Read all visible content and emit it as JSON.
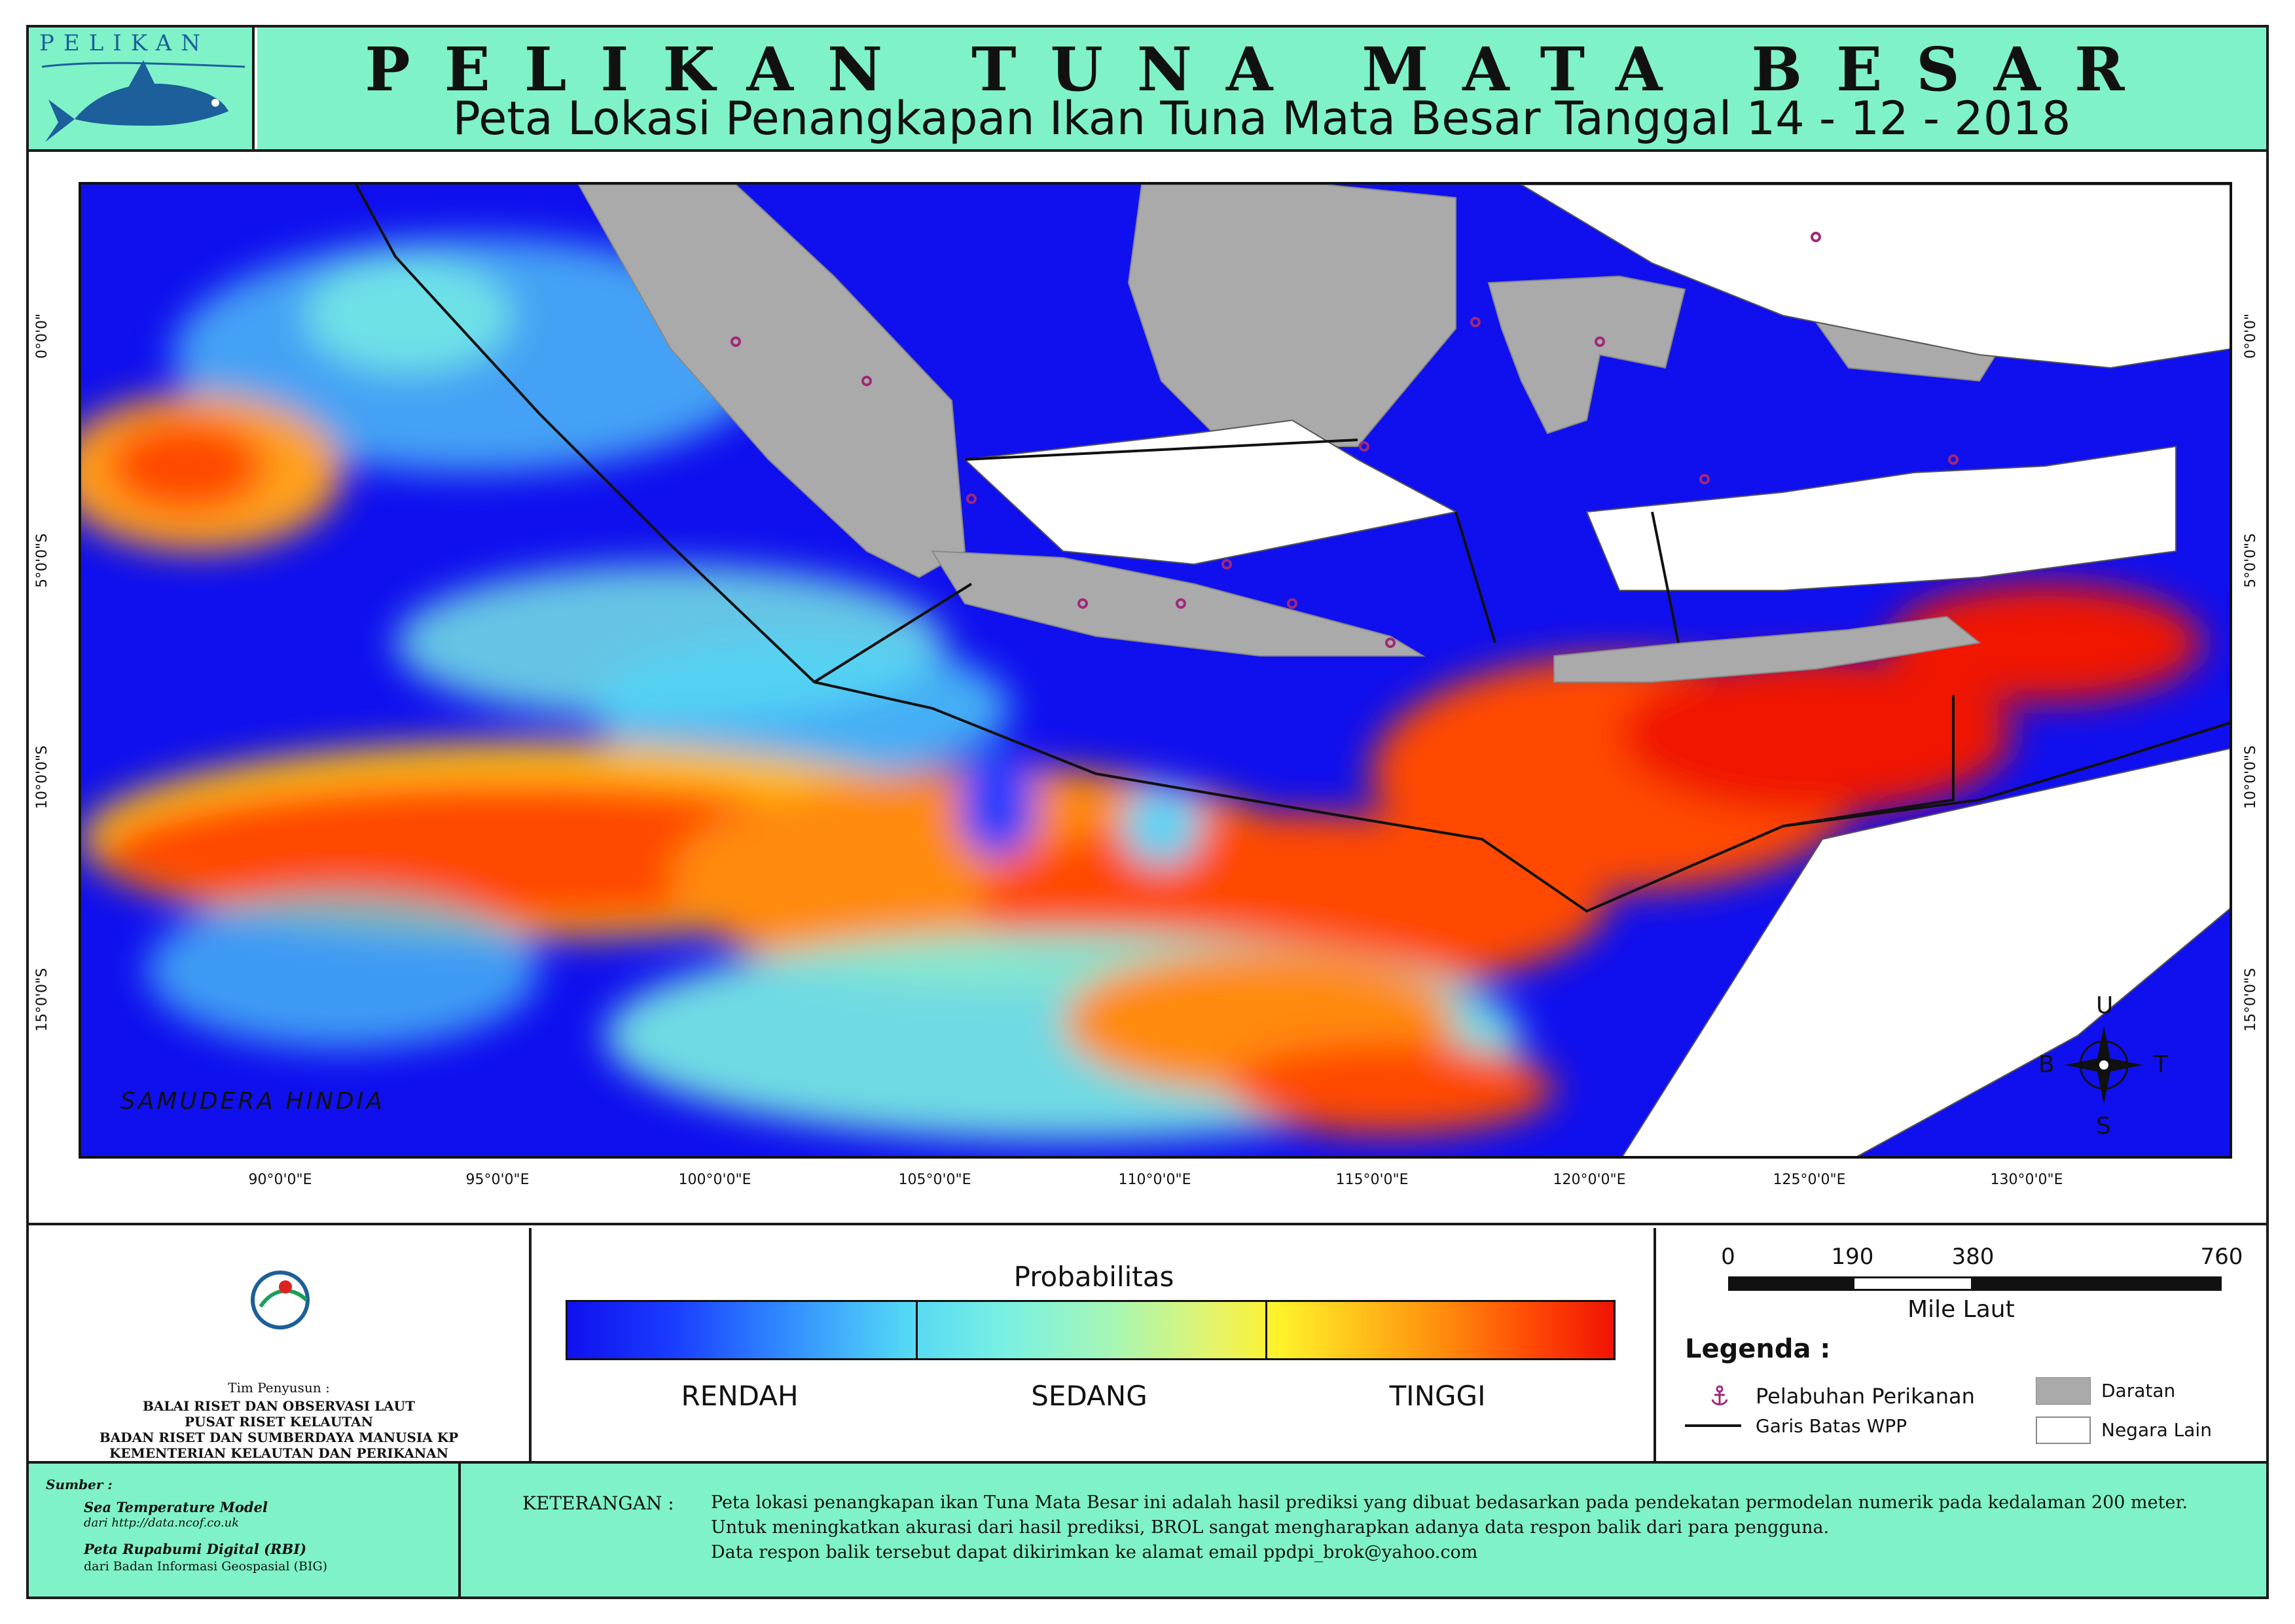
{
  "header": {
    "logo_text": "PELIKAN",
    "title": "PELIKAN TUNA MATA BESAR",
    "subtitle": "Peta Lokasi Penangkapan Ikan Tuna Mata Besar Tanggal 14 - 12 - 2018"
  },
  "map": {
    "ocean_label": "SAMUDERA HINDIA",
    "lon_labels": [
      "90°0'0\"E",
      "95°0'0\"E",
      "100°0'0\"E",
      "105°0'0\"E",
      "110°0'0\"E",
      "115°0'0\"E",
      "120°0'0\"E",
      "125°0'0\"E",
      "130°0'0\"E"
    ],
    "lat_labels": [
      "0°0'0\"",
      "5°0'0\"S",
      "10°0'0\"S",
      "15°0'0\"S"
    ],
    "compass": {
      "north": "U",
      "south": "S",
      "west": "B",
      "east": "T"
    },
    "colors": {
      "low": "#1010ee",
      "mid": "#7af1e2",
      "high": "#f01304",
      "land": "#aaaaaa",
      "other_country": "#ffffff",
      "port": "#a1287a"
    }
  },
  "team": {
    "title": "Tim Penyusun :",
    "lines": [
      "BALAI RISET DAN OBSERVASI LAUT",
      "PUSAT RISET KELAUTAN",
      "BADAN RISET DAN SUMBERDAYA MANUSIA KP",
      "KEMENTERIAN KELAUTAN DAN PERIKANAN"
    ]
  },
  "probability": {
    "title": "Probabilitas",
    "labels": [
      "RENDAH",
      "SEDANG",
      "TINGGI"
    ]
  },
  "scale": {
    "ticks": [
      "0",
      "190",
      "380",
      "760"
    ],
    "unit": "Mile Laut"
  },
  "legend": {
    "title": "Legenda :",
    "port": "Pelabuhan Perikanan",
    "boundary": "Garis Batas WPP",
    "land": "Daratan",
    "other_country": "Negara Lain"
  },
  "sources": {
    "title": "Sumber :",
    "item1_title": "Sea Temperature Model",
    "item1_detail": "dari http://data.ncof.co.uk",
    "item2_title": "Peta Rupabumi Digital (RBI)",
    "item2_detail": "dari Badan Informasi Geospasial (BIG)"
  },
  "note": {
    "label": "KETERANGAN :",
    "lines": [
      "Peta lokasi penangkapan ikan Tuna Mata Besar ini adalah hasil prediksi yang dibuat bedasarkan pada pendekatan permodelan numerik pada kedalaman 200 meter.",
      "Untuk meningkatkan akurasi dari hasil prediksi, BROL sangat mengharapkan adanya data respon balik dari para pengguna.",
      "Data respon balik tersebut dapat dikirimkan ke alamat email ppdpi_brok@yahoo.com"
    ]
  }
}
